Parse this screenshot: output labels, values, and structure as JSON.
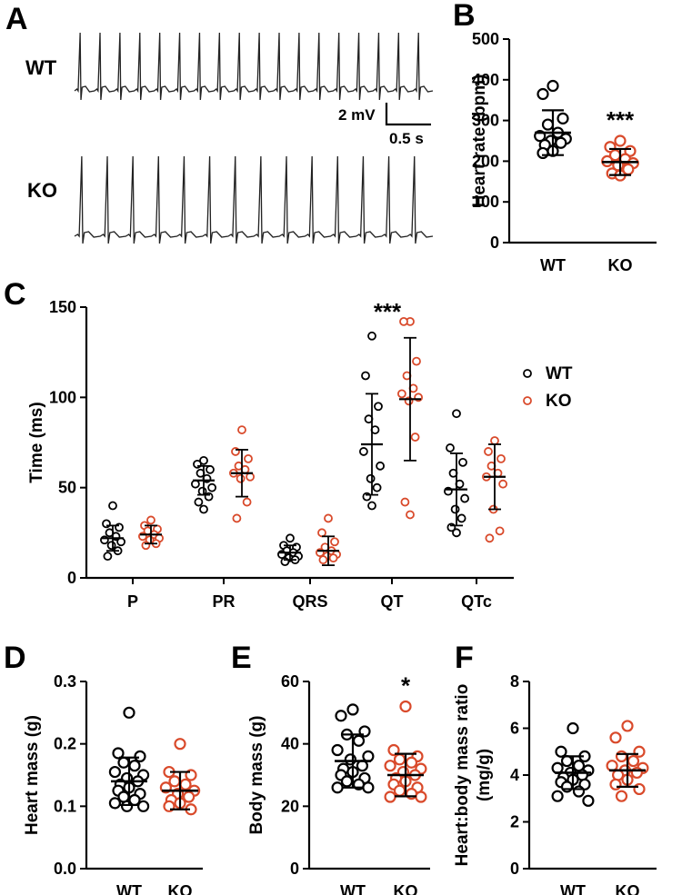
{
  "panels": {
    "A": {
      "letter": "A",
      "traces": [
        "WT",
        "KO"
      ],
      "scale_mv": "2 mV",
      "scale_s": "0.5 s"
    }
  },
  "chart_data": [
    {
      "id": "B",
      "letter": "B",
      "type": "scatter",
      "ylabel": "Heart rate (bpm)",
      "ylim": [
        0,
        500
      ],
      "yticks": [
        0,
        100,
        200,
        300,
        400,
        500
      ],
      "categories": [
        "WT",
        "KO"
      ],
      "groups": [
        {
          "name": "WT",
          "color": "#000000",
          "mean": 270,
          "sd": 55,
          "points": [
            385,
            365,
            305,
            290,
            270,
            262,
            255,
            250,
            245,
            240,
            225,
            220
          ]
        },
        {
          "name": "KO",
          "color": "#d94a2b",
          "mean": 198,
          "sd": 32,
          "points": [
            250,
            235,
            225,
            215,
            205,
            200,
            195,
            190,
            180,
            170,
            165
          ]
        }
      ],
      "annotations": [
        {
          "group": "KO",
          "text": "***"
        }
      ]
    },
    {
      "id": "C",
      "letter": "C",
      "type": "scatter",
      "ylabel": "Time (ms)",
      "ylim": [
        0,
        150
      ],
      "yticks": [
        0,
        50,
        100,
        150
      ],
      "categories": [
        "P",
        "PR",
        "QRS",
        "QT",
        "QTc"
      ],
      "legend": {
        "position": "right",
        "entries": [
          "WT",
          "KO"
        ]
      },
      "series": [
        {
          "name": "WT",
          "color": "#000000",
          "means": [
            22,
            54,
            14,
            74,
            49
          ],
          "sd": [
            7,
            8,
            4,
            28,
            20
          ],
          "points": [
            [
              40,
              30,
              28,
              25,
              23,
              21,
              20,
              18,
              15,
              12
            ],
            [
              65,
              63,
              60,
              58,
              55,
              52,
              50,
              48,
              45,
              42,
              38
            ],
            [
              22,
              18,
              17,
              15,
              14,
              13,
              12,
              11,
              10,
              9
            ],
            [
              134,
              112,
              95,
              88,
              82,
              70,
              62,
              55,
              50,
              45,
              40
            ],
            [
              91,
              72,
              64,
              58,
              52,
              48,
              44,
              38,
              33,
              28,
              25
            ]
          ]
        },
        {
          "name": "KO",
          "color": "#d94a2b",
          "means": [
            24,
            58,
            15,
            99,
            56
          ],
          "sd": [
            5,
            13,
            8,
            34,
            18
          ],
          "points": [
            [
              32,
              29,
              27,
              26,
              24,
              23,
              22,
              21,
              19,
              18
            ],
            [
              82,
              70,
              66,
              62,
              60,
              58,
              56,
              55,
              42,
              33
            ],
            [
              33,
              25,
              20,
              17,
              15,
              14,
              13,
              12,
              11,
              10
            ],
            [
              142,
              142,
              120,
              112,
              105,
              102,
              100,
              98,
              78,
              42,
              35
            ],
            [
              76,
              70,
              66,
              62,
              58,
              56,
              52,
              38,
              26,
              22
            ]
          ]
        }
      ],
      "annotations": [
        {
          "category": "QT",
          "text": "***"
        }
      ]
    },
    {
      "id": "D",
      "letter": "D",
      "type": "scatter",
      "ylabel": "Heart mass (g)",
      "ylim": [
        0,
        0.3
      ],
      "yticks": [
        "0.0",
        "0.1",
        "0.2",
        "0.3"
      ],
      "categories": [
        "WT",
        "KO"
      ],
      "groups": [
        {
          "name": "WT",
          "color": "#000000",
          "mean": 0.14,
          "sd": 0.038,
          "points": [
            0.25,
            0.185,
            0.18,
            0.17,
            0.165,
            0.155,
            0.15,
            0.145,
            0.14,
            0.135,
            0.13,
            0.125,
            0.12,
            0.115,
            0.11,
            0.105,
            0.1,
            0.1
          ]
        },
        {
          "name": "KO",
          "color": "#d94a2b",
          "mean": 0.125,
          "sd": 0.03,
          "points": [
            0.2,
            0.155,
            0.15,
            0.14,
            0.135,
            0.13,
            0.125,
            0.12,
            0.115,
            0.11,
            0.105,
            0.1,
            0.095
          ]
        }
      ]
    },
    {
      "id": "E",
      "letter": "E",
      "type": "scatter",
      "ylabel": "Body mass (g)",
      "ylim": [
        0,
        60
      ],
      "yticks": [
        0,
        20,
        40,
        60
      ],
      "categories": [
        "WT",
        "KO"
      ],
      "groups": [
        {
          "name": "WT",
          "color": "#000000",
          "mean": 34.5,
          "sd": 8.5,
          "points": [
            51,
            49,
            44,
            43,
            41,
            38,
            36,
            35,
            33,
            32,
            31,
            30,
            29,
            28,
            27,
            26,
            26
          ]
        },
        {
          "name": "KO",
          "color": "#d94a2b",
          "mean": 30,
          "sd": 6.8,
          "points": [
            52,
            38,
            36,
            35,
            34,
            33,
            32,
            31,
            30,
            29,
            28,
            27,
            26,
            25,
            24,
            23,
            23
          ]
        }
      ],
      "annotations": [
        {
          "group": "KO",
          "text": "*"
        }
      ]
    },
    {
      "id": "F",
      "letter": "F",
      "type": "scatter",
      "ylabel": "Heart:body mass ratio (mg/g)",
      "ylabel_lines": [
        "Heart:body mass ratio",
        "(mg/g)"
      ],
      "ylim": [
        0,
        8
      ],
      "yticks": [
        0,
        2,
        4,
        6,
        8
      ],
      "categories": [
        "WT",
        "KO"
      ],
      "groups": [
        {
          "name": "WT",
          "color": "#000000",
          "mean": 4.1,
          "sd": 0.7,
          "points": [
            6.0,
            5.0,
            4.8,
            4.6,
            4.4,
            4.3,
            4.2,
            4.1,
            4.0,
            3.9,
            3.8,
            3.7,
            3.6,
            3.5,
            3.3,
            3.1,
            2.9
          ]
        },
        {
          "name": "KO",
          "color": "#d94a2b",
          "mean": 4.2,
          "sd": 0.7,
          "points": [
            6.1,
            5.6,
            5.0,
            4.8,
            4.6,
            4.4,
            4.3,
            4.2,
            4.1,
            4.0,
            3.8,
            3.6,
            3.4,
            3.1
          ]
        }
      ]
    }
  ]
}
